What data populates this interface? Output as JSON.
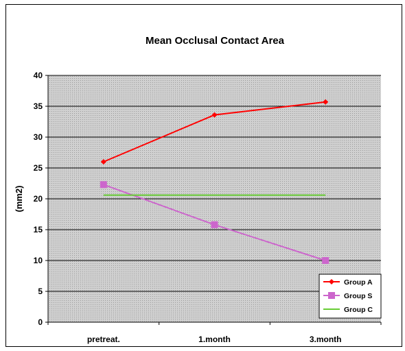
{
  "chart_data": {
    "type": "line",
    "title": "Mean Occlusal Contact Area",
    "xlabel": "",
    "ylabel": "(mm2)",
    "categories": [
      "pretreat.",
      "1.month",
      "3.month"
    ],
    "ylim": [
      0,
      40
    ],
    "yticks": [
      0,
      5,
      10,
      15,
      20,
      25,
      30,
      35,
      40
    ],
    "grid": true,
    "legend_position": "bottom-right",
    "series": [
      {
        "name": "Group A",
        "values": [
          26.0,
          33.6,
          35.7
        ],
        "color": "#ff0000",
        "marker": "diamond"
      },
      {
        "name": "Group S",
        "values": [
          22.3,
          15.8,
          10.0
        ],
        "color": "#cc66cc",
        "marker": "square"
      },
      {
        "name": "Group C",
        "values": [
          20.6,
          20.6,
          20.6
        ],
        "color": "#66cc33",
        "marker": "none"
      }
    ]
  }
}
